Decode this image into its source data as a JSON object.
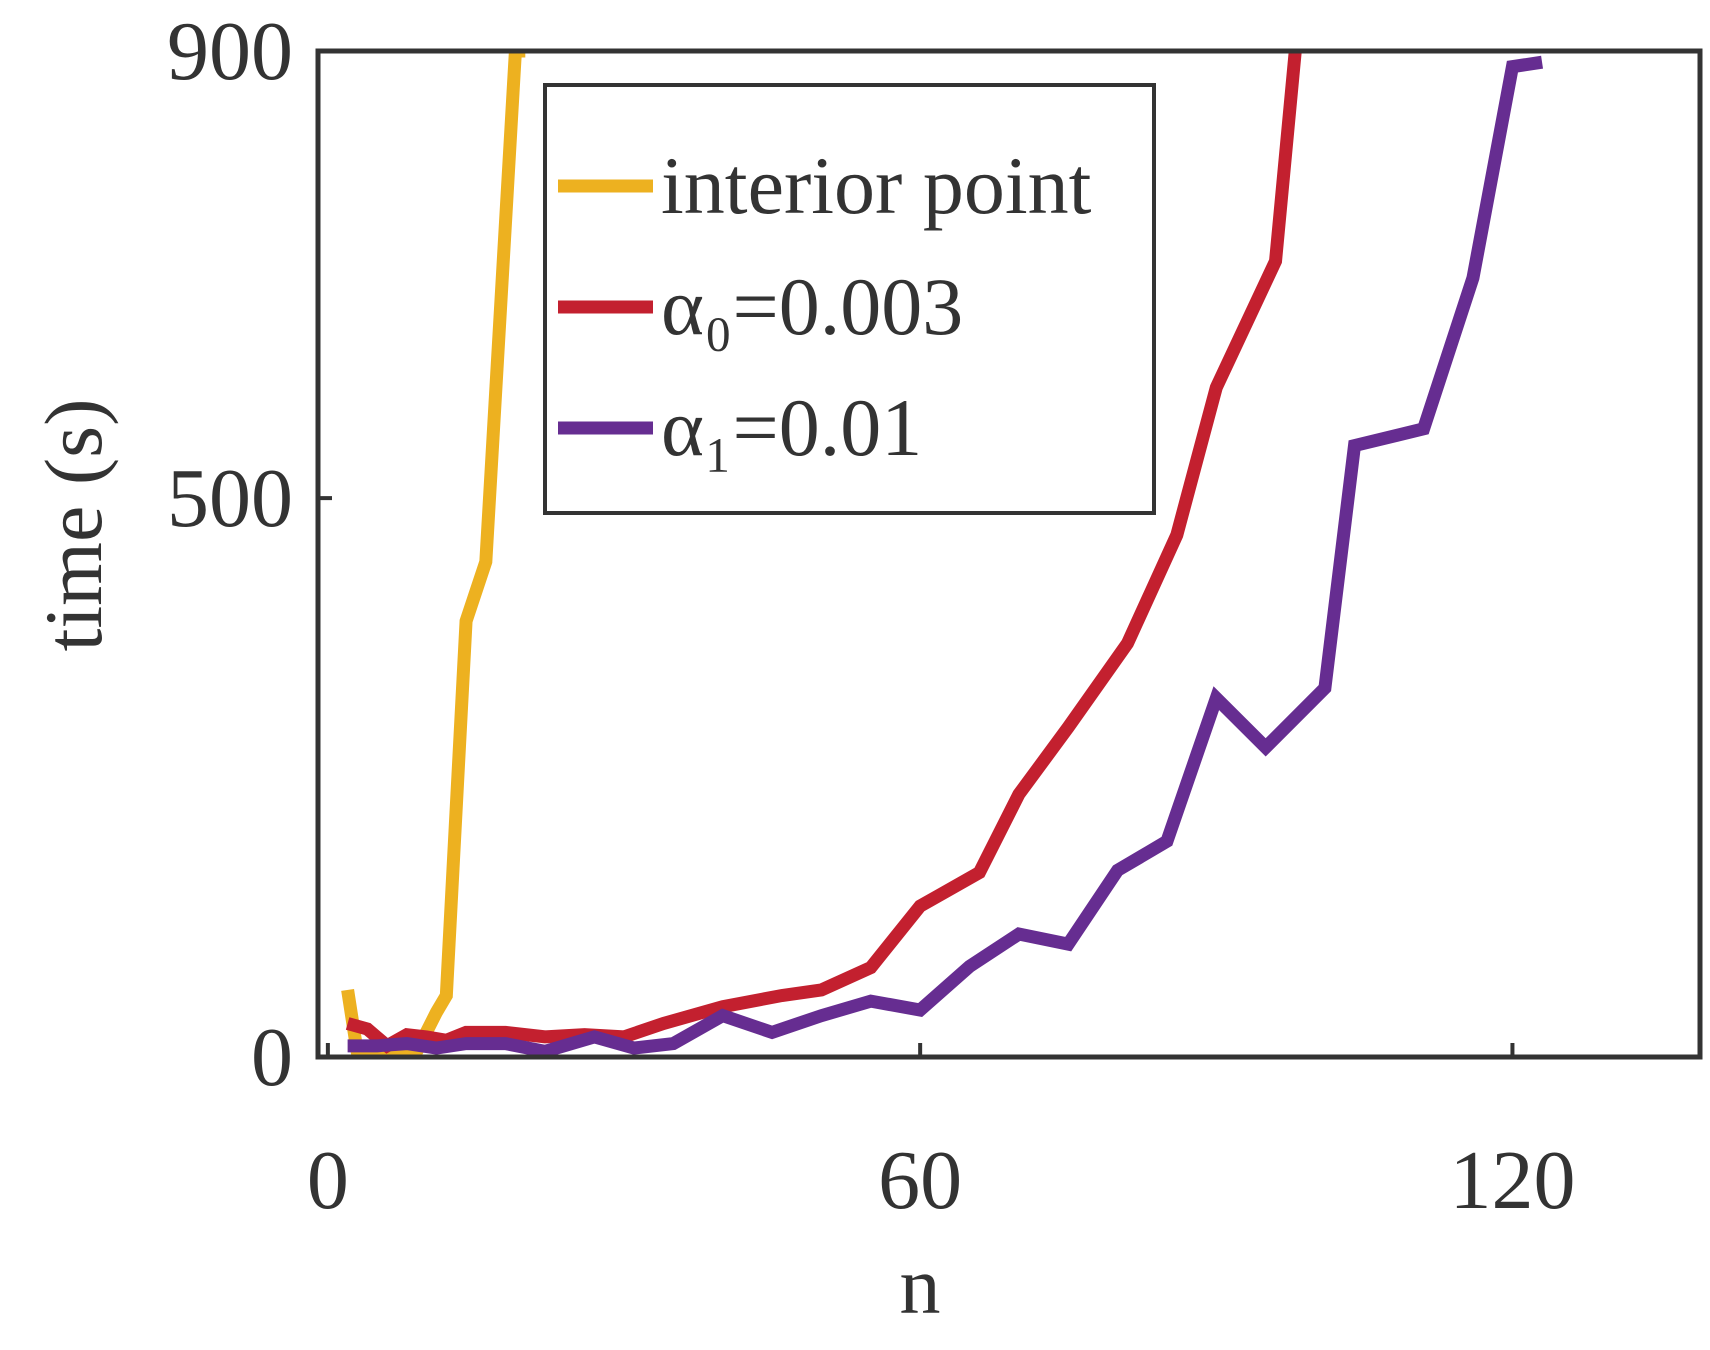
{
  "chart_data": {
    "type": "line",
    "x_label": "n",
    "y_label": "time (s)",
    "xlim": [
      -1,
      139
    ],
    "ylim": [
      0,
      900
    ],
    "xticks": [
      0,
      60,
      120
    ],
    "yticks": [
      0,
      500,
      900
    ],
    "grid": false,
    "legend": "top-center",
    "series": [
      {
        "name": "interior point",
        "color": "#EDB120",
        "x": [
          2,
          3,
          5,
          7,
          9,
          11,
          12,
          14,
          16,
          19,
          20
        ],
        "values": [
          60,
          3,
          2,
          0,
          5,
          40,
          55,
          390,
          443,
          900,
          900
        ]
      },
      {
        "name": "α₀=0.003",
        "color": "#C3202F",
        "x": [
          2,
          4,
          6,
          8,
          10,
          12,
          14,
          18,
          22,
          26,
          30,
          34,
          40,
          46,
          50,
          55,
          60,
          66,
          70,
          75,
          81,
          86,
          90,
          96,
          98
        ],
        "values": [
          30,
          25,
          10,
          20,
          18,
          15,
          22,
          22,
          18,
          20,
          18,
          30,
          45,
          55,
          60,
          80,
          135,
          165,
          235,
          295,
          370,
          467,
          599,
          712,
          900
        ]
      },
      {
        "name": "α₁=0.01",
        "color": "#662D91",
        "x": [
          2,
          5,
          8,
          11,
          14,
          18,
          22,
          27,
          31,
          35,
          40,
          45,
          50,
          55,
          60,
          65,
          70,
          75,
          80,
          85,
          90,
          95,
          101,
          104,
          111,
          116,
          120,
          123
        ],
        "values": [
          10,
          10,
          12,
          8,
          12,
          12,
          5,
          18,
          8,
          12,
          37,
          22,
          37,
          50,
          42,
          81,
          110,
          101,
          167,
          193,
          321,
          277,
          330,
          547,
          562,
          697,
          886,
          890
        ]
      }
    ]
  }
}
